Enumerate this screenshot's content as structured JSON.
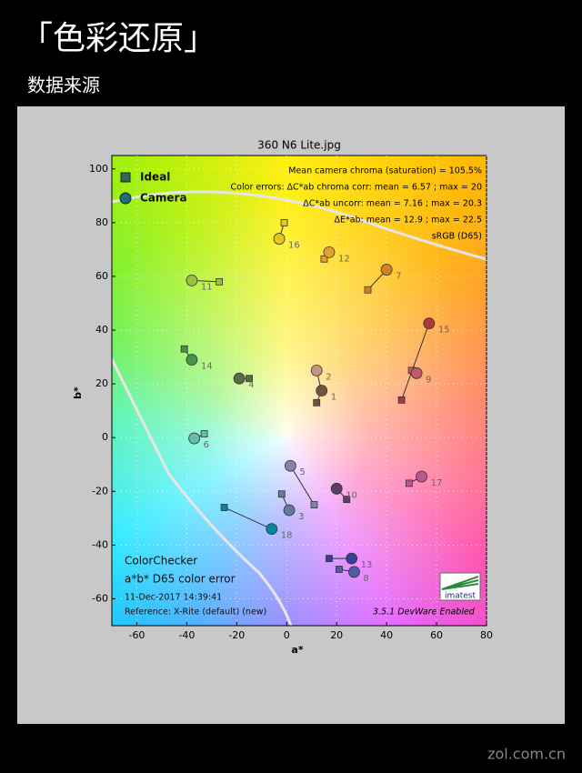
{
  "header": {
    "title": "「色彩还原」",
    "subtitle": "数据来源"
  },
  "footer": {
    "watermark": "zol.com.cn"
  },
  "chart_data": {
    "type": "scatter",
    "title": "360 N6 Lite.jpg",
    "x_label": "a*",
    "y_label": "b*",
    "xlim": [
      -70,
      80
    ],
    "ylim": [
      -70,
      105
    ],
    "xticks": [
      -60,
      -40,
      -20,
      0,
      20,
      40,
      60,
      80
    ],
    "yticks": [
      -60,
      -40,
      -20,
      0,
      20,
      40,
      60,
      80,
      100
    ],
    "grid": true,
    "legend": "upper left",
    "point_labels": [
      "1",
      "2",
      "3",
      "4",
      "5",
      "6",
      "7",
      "8",
      "9",
      "10",
      "11",
      "12",
      "13",
      "14",
      "15",
      "16",
      "17",
      "18"
    ],
    "colors": [
      "#735244",
      "#c29682",
      "#627a9d",
      "#576c43",
      "#8580b1",
      "#67bdaa",
      "#d67e2c",
      "#505ba6",
      "#c15a63",
      "#5e3c6c",
      "#9dbc40",
      "#e0a32e",
      "#383d96",
      "#469449",
      "#af363c",
      "#e7c71f",
      "#bb5695",
      "#0885a1"
    ],
    "series": [
      {
        "name": "Ideal",
        "marker": "square",
        "color": "#2d6a4f",
        "x": [
          12,
          14,
          -2,
          -15,
          11,
          -33,
          32.5,
          21,
          50,
          24,
          -27,
          15,
          17,
          -41,
          46,
          -1,
          49,
          -25
        ],
        "y": [
          13,
          17,
          -21,
          22,
          -25,
          1.4,
          55,
          -49,
          25,
          -23,
          58,
          66.5,
          -45,
          33,
          14,
          80,
          -17,
          -26
        ]
      },
      {
        "name": "Camera",
        "marker": "circle",
        "color": "#1f6f7a",
        "x": [
          14,
          12,
          1,
          -19,
          1.5,
          -37,
          40,
          27,
          52,
          20,
          -38,
          17,
          26,
          -38,
          57,
          -3,
          54,
          -6
        ],
        "y": [
          17.5,
          25,
          -27,
          22,
          -10.5,
          -0.3,
          62.5,
          -50,
          24,
          -19,
          58.5,
          69,
          -45,
          29,
          42.5,
          74,
          -14.5,
          -34
        ]
      }
    ],
    "annotations_top_right": [
      "Mean camera chroma (saturation) = 105.5%",
      "Color errors: ΔC*ab chroma corr:  mean = 6.57 ;  max = 20",
      "ΔC*ab uncorr:  mean = 7.16 ;  max = 20.3",
      "ΔE*ab:  mean = 12.9 ;  max = 22.5",
      "sRGB (D65)"
    ],
    "annotations_bottom_left": [
      "ColorChecker",
      "a*b* D65 color error",
      "11-Dec-2017 14:39:41",
      "Reference: X-Rite (default) (new)"
    ],
    "version_note": "3.5.1  DevWare Enabled",
    "logo": "imatest"
  }
}
